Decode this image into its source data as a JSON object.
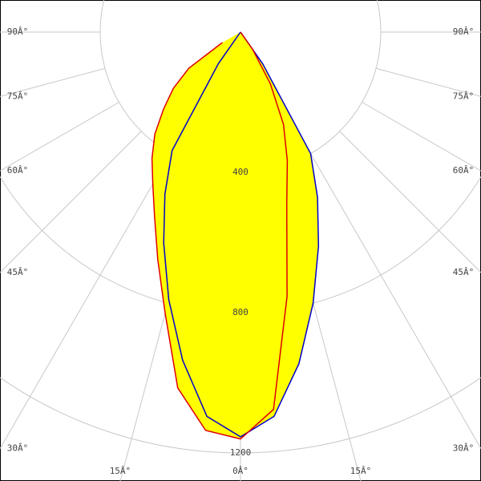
{
  "chart_data": {
    "type": "polar",
    "x": [
      -60,
      -55,
      -50,
      -45,
      -40,
      -35,
      -30,
      -25,
      -20,
      -15,
      -10,
      -5,
      0,
      5,
      10,
      15,
      20,
      25,
      30,
      35,
      40,
      45,
      50,
      55,
      60
    ],
    "series": [
      {
        "color": "#0000cc",
        "values": [
          0,
          0,
          0,
          0,
          0,
          110,
          390,
          510,
          640,
          790,
          950,
          1100,
          1154,
          1100,
          960,
          800,
          650,
          520,
          400,
          110,
          0,
          0,
          0,
          0,
          0
        ]
      },
      {
        "color": "#dd0000",
        "values": [
          60,
          180,
          250,
          310,
          380,
          440,
          500,
          580,
          690,
          830,
          1030,
          1140,
          1160,
          1080,
          765,
          510,
          390,
          290,
          170,
          60,
          0,
          0,
          0,
          0,
          0
        ]
      }
    ],
    "fill": "#ffff00",
    "rlim": [
      0,
      1200
    ],
    "rticks": [
      400,
      800,
      1200
    ],
    "xticks": [
      {
        "value": -90,
        "label": "90Â°"
      },
      {
        "value": -75,
        "label": "75Â°"
      },
      {
        "value": -60,
        "label": "60Â°"
      },
      {
        "value": -45,
        "label": "45Â°"
      },
      {
        "value": -30,
        "label": "30Â°"
      },
      {
        "value": -15,
        "label": "15Â°"
      },
      {
        "value": 0,
        "label": "0Â°"
      },
      {
        "value": 15,
        "label": "15Â°"
      },
      {
        "value": 30,
        "label": "30Â°"
      },
      {
        "value": 45,
        "label": "45Â°"
      },
      {
        "value": 60,
        "label": "60Â°"
      },
      {
        "value": 75,
        "label": "75Â°"
      },
      {
        "value": 90,
        "label": "90Â°"
      }
    ]
  }
}
